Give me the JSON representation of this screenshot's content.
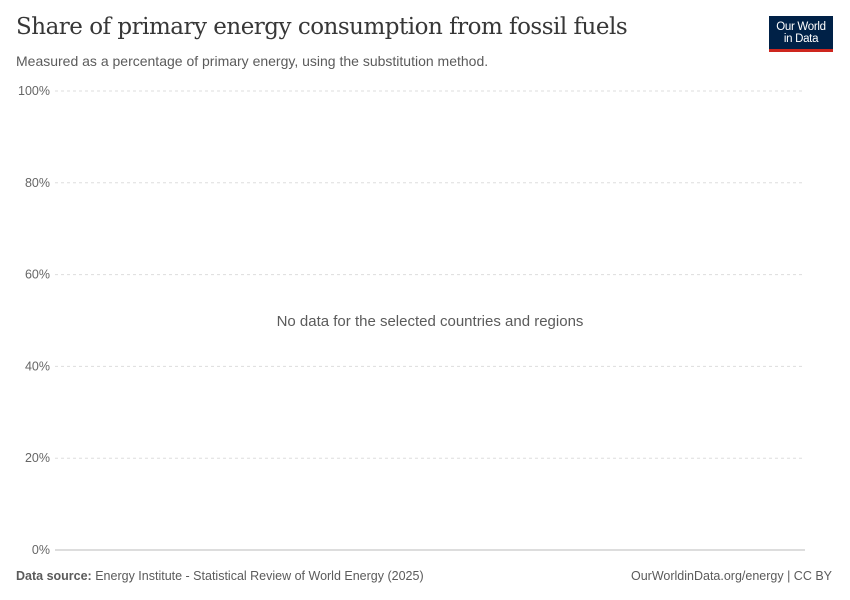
{
  "header": {
    "title": "Share of primary energy consumption from fossil fuels",
    "subtitle": "Measured as a percentage of primary energy, using the substitution method.",
    "logo_line1": "Our World",
    "logo_line2": "in Data"
  },
  "chart_data": {
    "type": "line",
    "title": "Share of primary energy consumption from fossil fuels",
    "subtitle": "Measured as a percentage of primary energy, using the substitution method.",
    "ylim": [
      0,
      100
    ],
    "yticks": [
      0,
      20,
      40,
      60,
      80,
      100
    ],
    "ytick_labels": [
      "0%",
      "20%",
      "40%",
      "60%",
      "80%",
      "100%"
    ],
    "grid": true,
    "series": [],
    "annotation": "No data for the selected countries and regions"
  },
  "footer": {
    "source_label": "Data source:",
    "source_text": "Energy Institute - Statistical Review of World Energy (2025)",
    "url": "OurWorldinData.org/energy | CC BY"
  },
  "colors": {
    "logo_bg": "#002147",
    "logo_accent": "#ce261e"
  }
}
